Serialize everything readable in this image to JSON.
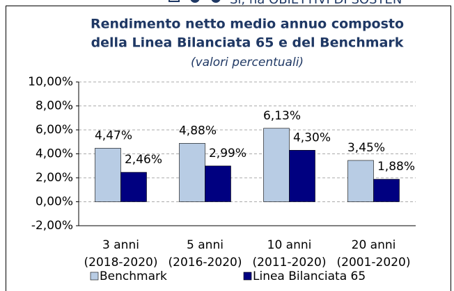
{
  "page_fragment": "Sì, ha OBIETTIVI DI SOSTEN",
  "chart_data": {
    "type": "bar",
    "title": [
      "Rendimento netto medio annuo composto",
      "della Linea Bilanciata 65 e del Benchmark"
    ],
    "subtitle": "(valori percentuali)",
    "categories": [
      [
        "3 anni",
        "(2018-2020)"
      ],
      [
        "5 anni",
        "(2016-2020)"
      ],
      [
        "10 anni",
        "(2011-2020)"
      ],
      [
        "20 anni",
        "(2001-2020)"
      ]
    ],
    "series": [
      {
        "name": "Benchmark",
        "color": "#b8cce4",
        "values": [
          4.47,
          4.88,
          6.13,
          3.45
        ],
        "value_labels": [
          "4,47%",
          "4,88%",
          "6,13%",
          "3,45%"
        ]
      },
      {
        "name": "Linea Bilanciata 65",
        "color": "#000080",
        "values": [
          2.46,
          2.99,
          4.3,
          1.88
        ],
        "value_labels": [
          "2,46%",
          "2,99%",
          "4,30%",
          "1,88%"
        ]
      }
    ],
    "ylim": [
      -2,
      10
    ],
    "yticks": [
      {
        "value": -2,
        "label": "-2,00%"
      },
      {
        "value": 0,
        "label": "0,00%"
      },
      {
        "value": 2,
        "label": "2,00%"
      },
      {
        "value": 4,
        "label": "4,00%"
      },
      {
        "value": 6,
        "label": "6,00%"
      },
      {
        "value": 8,
        "label": "8,00%"
      },
      {
        "value": 10,
        "label": "10,00%"
      }
    ],
    "grid": true,
    "legend": "bottom"
  }
}
